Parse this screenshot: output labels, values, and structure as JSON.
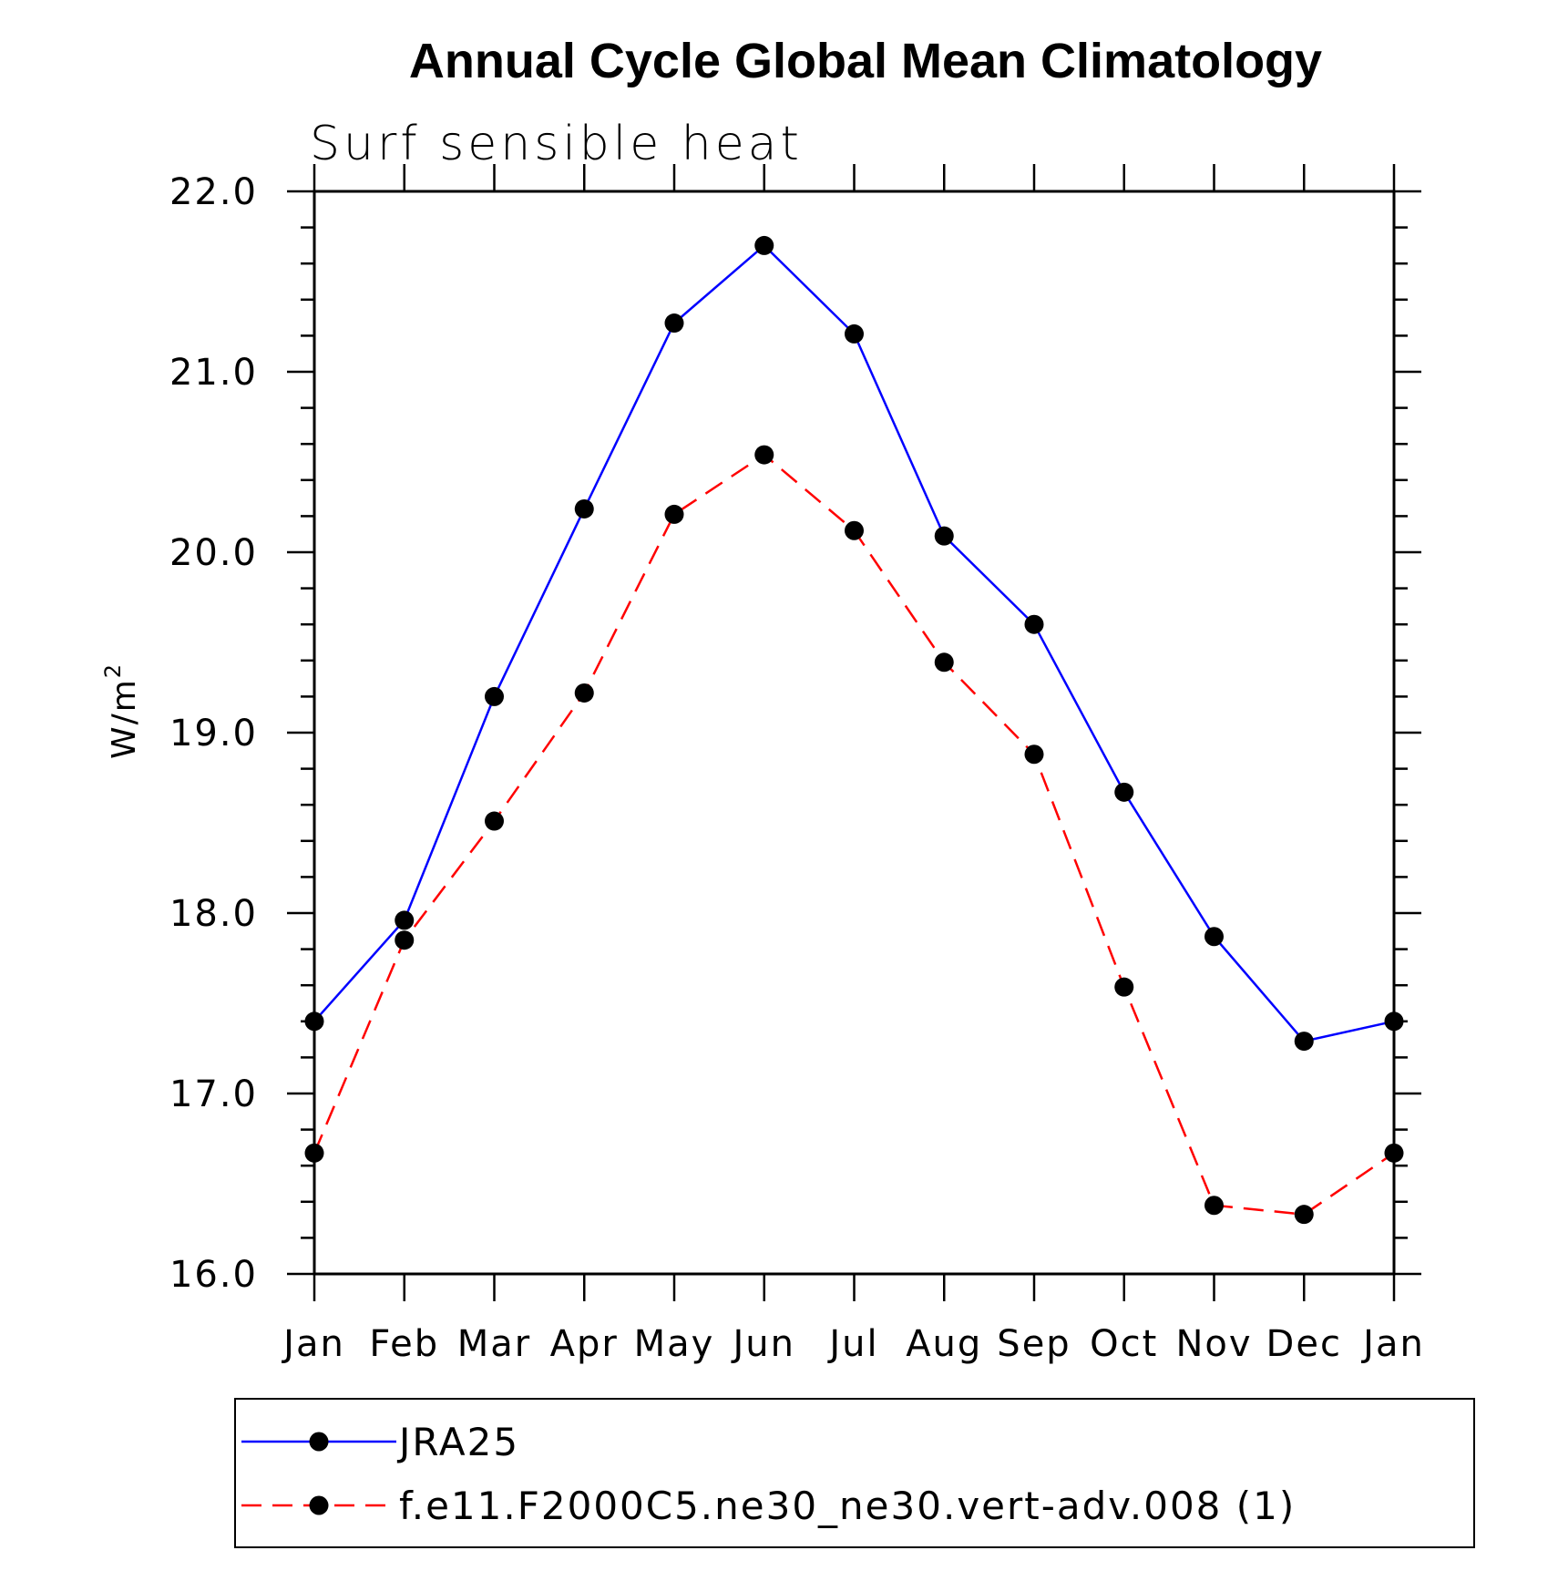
{
  "chart_data": {
    "type": "line",
    "title": "Annual Cycle Global Mean Climatology",
    "subtitle": "Surf sensible heat",
    "xlabel": "",
    "ylabel": "W/m",
    "ylabel_superscript": "2",
    "categories": [
      "Jan",
      "Feb",
      "Mar",
      "Apr",
      "May",
      "Jun",
      "Jul",
      "Aug",
      "Sep",
      "Oct",
      "Nov",
      "Dec",
      "Jan"
    ],
    "ylim": [
      16.0,
      22.0
    ],
    "yticks": [
      "16.0",
      "17.0",
      "18.0",
      "19.0",
      "20.0",
      "21.0",
      "22.0"
    ],
    "grid": false,
    "legend_position": "bottom",
    "series": [
      {
        "name": "JRA25",
        "color": "#0000ff",
        "dash": "solid",
        "marker": "circle",
        "values": [
          17.4,
          17.96,
          19.2,
          20.24,
          21.27,
          21.7,
          21.21,
          20.09,
          19.6,
          18.67,
          17.87,
          17.29,
          17.4
        ]
      },
      {
        "name": "f.e11.F2000C5.ne30_ne30.vert-adv.008 (1)",
        "color": "#ff0000",
        "dash": "dashed",
        "marker": "circle",
        "values": [
          16.67,
          17.85,
          18.51,
          19.22,
          20.21,
          20.54,
          20.12,
          19.39,
          18.88,
          17.59,
          16.38,
          16.33,
          16.67
        ]
      }
    ]
  }
}
